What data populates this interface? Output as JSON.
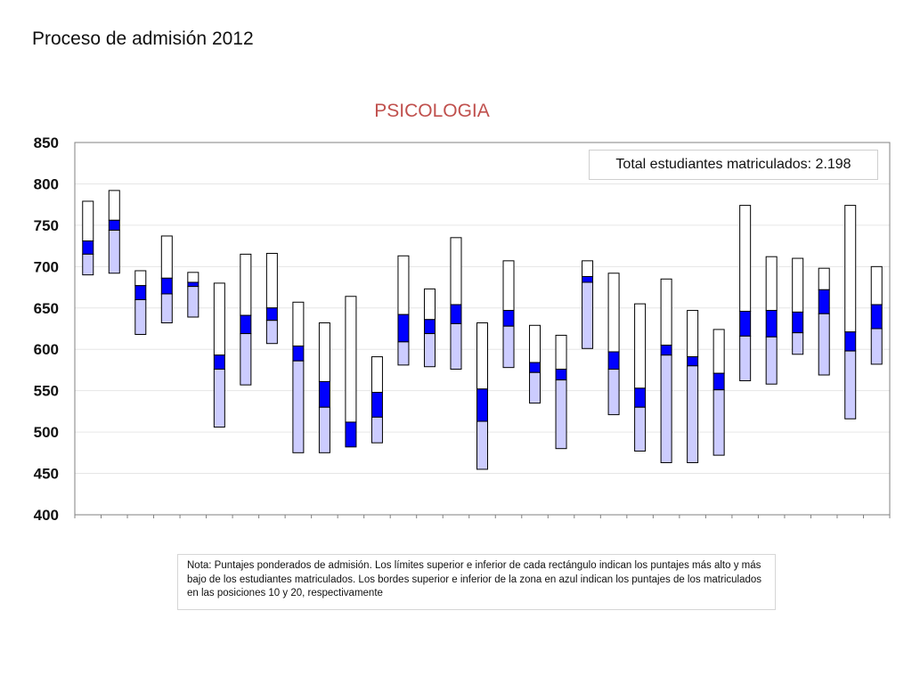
{
  "page": {
    "title": "Proceso de admisión 2012",
    "total_label": "Total estudiantes matriculados: 2.198",
    "note": "Nota: Puntajes ponderados de admisión. Los límites superior e inferior de cada rectángulo indican los puntajes más alto y más bajo de los estudiantes matriculados. Los bordes superior e inferior de la zona en azul indican los puntajes de los matriculados en las posiciones 10 y 20, respectivamente"
  },
  "colors": {
    "title": "#c0504d",
    "upper_box": "#ffffff",
    "blue_zone": "#0000ff",
    "lower_box": "#ccccff",
    "outline": "#000000",
    "grid": "#e6e6e6",
    "axis": "#808080"
  },
  "chart_data": {
    "type": "box",
    "title": "PSICOLOGIA",
    "xlabel": "",
    "ylabel": "",
    "ylim": [
      400,
      850
    ],
    "yticks": [
      400,
      450,
      500,
      550,
      600,
      650,
      700,
      750,
      800,
      850
    ],
    "grid": true,
    "series": [
      {
        "max": 779,
        "p10": 731,
        "p20": 715,
        "min": 690
      },
      {
        "max": 792,
        "p10": 756,
        "p20": 744,
        "min": 692
      },
      {
        "max": 695,
        "p10": 677,
        "p20": 660,
        "min": 618
      },
      {
        "max": 737,
        "p10": 686,
        "p20": 667,
        "min": 632
      },
      {
        "max": 693,
        "p10": 681,
        "p20": 676,
        "min": 639
      },
      {
        "max": 680,
        "p10": 593,
        "p20": 576,
        "min": 506
      },
      {
        "max": 715,
        "p10": 641,
        "p20": 619,
        "min": 557
      },
      {
        "max": 716,
        "p10": 650,
        "p20": 635,
        "min": 607
      },
      {
        "max": 657,
        "p10": 604,
        "p20": 586,
        "min": 475
      },
      {
        "max": 632,
        "p10": 561,
        "p20": 530,
        "min": 475
      },
      {
        "max": 664,
        "p10": 512,
        "p20": 482,
        "min": 482
      },
      {
        "max": 591,
        "p10": 548,
        "p20": 518,
        "min": 487
      },
      {
        "max": 713,
        "p10": 642,
        "p20": 609,
        "min": 581
      },
      {
        "max": 673,
        "p10": 636,
        "p20": 619,
        "min": 579
      },
      {
        "max": 735,
        "p10": 654,
        "p20": 631,
        "min": 576
      },
      {
        "max": 632,
        "p10": 552,
        "p20": 513,
        "min": 455
      },
      {
        "max": 707,
        "p10": 647,
        "p20": 628,
        "min": 578
      },
      {
        "max": 629,
        "p10": 584,
        "p20": 572,
        "min": 535
      },
      {
        "max": 617,
        "p10": 576,
        "p20": 563,
        "min": 480
      },
      {
        "max": 707,
        "p10": 688,
        "p20": 681,
        "min": 601
      },
      {
        "max": 692,
        "p10": 597,
        "p20": 576,
        "min": 521
      },
      {
        "max": 655,
        "p10": 553,
        "p20": 530,
        "min": 477
      },
      {
        "max": 685,
        "p10": 605,
        "p20": 593,
        "min": 463
      },
      {
        "max": 647,
        "p10": 591,
        "p20": 580,
        "min": 463
      },
      {
        "max": 624,
        "p10": 571,
        "p20": 551,
        "min": 472
      },
      {
        "max": 774,
        "p10": 646,
        "p20": 616,
        "min": 562
      },
      {
        "max": 712,
        "p10": 647,
        "p20": 615,
        "min": 558
      },
      {
        "max": 710,
        "p10": 645,
        "p20": 620,
        "min": 594
      },
      {
        "max": 698,
        "p10": 672,
        "p20": 643,
        "min": 569
      },
      {
        "max": 774,
        "p10": 621,
        "p20": 598,
        "min": 516
      },
      {
        "max": 700,
        "p10": 654,
        "p20": 625,
        "min": 582
      }
    ]
  }
}
